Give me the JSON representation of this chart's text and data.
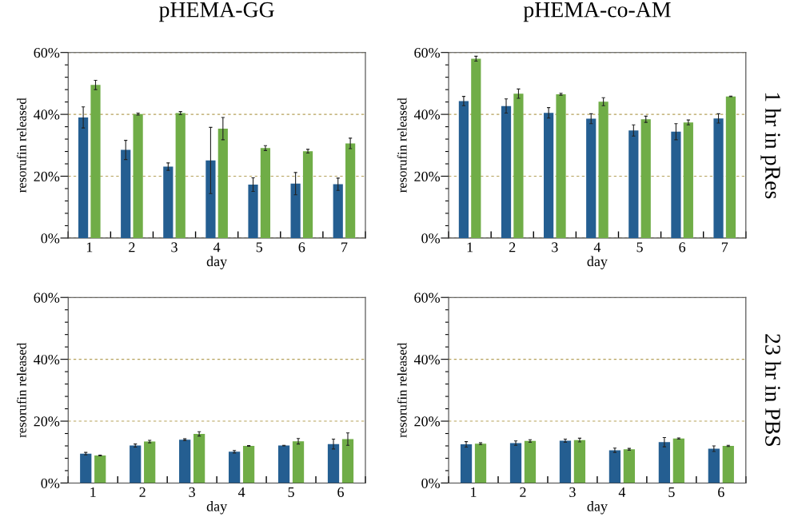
{
  "chart_data": [
    {
      "type": "bar",
      "title": "pHEMA-GG",
      "xlabel": "day",
      "ylabel": "resorufin released",
      "categories": [
        "1",
        "2",
        "3",
        "4",
        "5",
        "6",
        "7"
      ],
      "ylim": [
        0,
        60
      ],
      "yticks": [
        {
          "value": 0,
          "label": "0%"
        },
        {
          "value": 4,
          "label": null
        },
        {
          "value": 8,
          "label": null
        },
        {
          "value": 12,
          "label": null
        },
        {
          "value": 16,
          "label": null
        },
        {
          "value": 20,
          "label": "20%"
        },
        {
          "value": 24,
          "label": null
        },
        {
          "value": 28,
          "label": null
        },
        {
          "value": 32,
          "label": null
        },
        {
          "value": 36,
          "label": null
        },
        {
          "value": 40,
          "label": "40%"
        },
        {
          "value": 44,
          "label": null
        },
        {
          "value": 48,
          "label": null
        },
        {
          "value": 52,
          "label": null
        },
        {
          "value": 56,
          "label": null
        },
        {
          "value": 60,
          "label": "60%"
        }
      ],
      "grid": "y",
      "series": [
        {
          "color": "#245e91",
          "values": [
            39.0,
            28.5,
            23.1,
            25.1,
            17.3,
            17.6,
            17.4
          ],
          "errors": [
            3.4,
            3.1,
            1.2,
            10.7,
            2.2,
            3.6,
            2.0
          ]
        },
        {
          "color": "#70ad47",
          "values": [
            49.5,
            40.1,
            40.4,
            35.4,
            29.1,
            28.1,
            30.6
          ],
          "errors": [
            1.5,
            0.3,
            0.5,
            3.6,
            0.8,
            0.6,
            1.7
          ]
        }
      ]
    },
    {
      "type": "bar",
      "title": "pHEMA-co-AM",
      "xlabel": "day",
      "ylabel": "resorufin released",
      "y2label": "1 hr in pRes",
      "categories": [
        "1",
        "2",
        "3",
        "4",
        "5",
        "6",
        "7"
      ],
      "ylim": [
        0,
        60
      ],
      "yticks": [
        {
          "value": 0,
          "label": "0%"
        },
        {
          "value": 4,
          "label": null
        },
        {
          "value": 8,
          "label": null
        },
        {
          "value": 12,
          "label": null
        },
        {
          "value": 16,
          "label": null
        },
        {
          "value": 20,
          "label": "20%"
        },
        {
          "value": 24,
          "label": null
        },
        {
          "value": 28,
          "label": null
        },
        {
          "value": 32,
          "label": null
        },
        {
          "value": 36,
          "label": null
        },
        {
          "value": 40,
          "label": "40%"
        },
        {
          "value": 44,
          "label": null
        },
        {
          "value": 48,
          "label": null
        },
        {
          "value": 52,
          "label": null
        },
        {
          "value": 56,
          "label": null
        },
        {
          "value": 60,
          "label": "60%"
        }
      ],
      "grid": "y",
      "series": [
        {
          "color": "#245e91",
          "values": [
            44.3,
            42.7,
            40.5,
            38.6,
            34.8,
            34.4,
            38.7
          ],
          "errors": [
            1.5,
            2.3,
            1.7,
            1.6,
            1.8,
            2.6,
            1.5
          ]
        },
        {
          "color": "#70ad47",
          "values": [
            58.0,
            46.7,
            46.5,
            44.1,
            38.4,
            37.4,
            45.8
          ],
          "errors": [
            0.8,
            1.5,
            0.3,
            1.3,
            1.0,
            0.8,
            0.1
          ]
        }
      ]
    },
    {
      "type": "bar",
      "xlabel": "day",
      "ylabel": "resorufin released",
      "categories": [
        "1",
        "2",
        "3",
        "4",
        "5",
        "6"
      ],
      "ylim": [
        0,
        60
      ],
      "yticks": [
        {
          "value": 0,
          "label": "0%"
        },
        {
          "value": 4,
          "label": null
        },
        {
          "value": 8,
          "label": null
        },
        {
          "value": 12,
          "label": null
        },
        {
          "value": 16,
          "label": null
        },
        {
          "value": 20,
          "label": "20%"
        },
        {
          "value": 24,
          "label": null
        },
        {
          "value": 28,
          "label": null
        },
        {
          "value": 32,
          "label": null
        },
        {
          "value": 36,
          "label": null
        },
        {
          "value": 40,
          "label": "40%"
        },
        {
          "value": 44,
          "label": null
        },
        {
          "value": 48,
          "label": null
        },
        {
          "value": 52,
          "label": null
        },
        {
          "value": 56,
          "label": null
        },
        {
          "value": 60,
          "label": "60%"
        }
      ],
      "grid": "y",
      "series": [
        {
          "color": "#245e91",
          "values": [
            9.5,
            12.1,
            14.0,
            10.1,
            12.1,
            12.6
          ],
          "errors": [
            0.4,
            0.5,
            0.3,
            0.4,
            0.1,
            1.6
          ]
        },
        {
          "color": "#70ad47",
          "values": [
            8.9,
            13.4,
            15.9,
            12.0,
            13.5,
            14.2
          ],
          "errors": [
            0.1,
            0.4,
            0.7,
            0.1,
            0.9,
            2.0
          ]
        }
      ]
    },
    {
      "type": "bar",
      "xlabel": "day",
      "ylabel": "resorufin released",
      "y2label": "23 hr in PBS",
      "categories": [
        "1",
        "2",
        "3",
        "4",
        "5",
        "6"
      ],
      "ylim": [
        0,
        60
      ],
      "yticks": [
        {
          "value": 0,
          "label": "0%"
        },
        {
          "value": 4,
          "label": null
        },
        {
          "value": 8,
          "label": null
        },
        {
          "value": 12,
          "label": null
        },
        {
          "value": 16,
          "label": null
        },
        {
          "value": 20,
          "label": "20%"
        },
        {
          "value": 24,
          "label": null
        },
        {
          "value": 28,
          "label": null
        },
        {
          "value": 32,
          "label": null
        },
        {
          "value": 36,
          "label": null
        },
        {
          "value": 40,
          "label": "40%"
        },
        {
          "value": 44,
          "label": null
        },
        {
          "value": 48,
          "label": null
        },
        {
          "value": 52,
          "label": null
        },
        {
          "value": 56,
          "label": null
        },
        {
          "value": 60,
          "label": "60%"
        }
      ],
      "grid": "y",
      "series": [
        {
          "color": "#245e91",
          "values": [
            12.5,
            12.9,
            13.7,
            10.6,
            13.2,
            11.1
          ],
          "errors": [
            0.9,
            0.7,
            0.5,
            0.7,
            1.5,
            0.9
          ]
        },
        {
          "color": "#70ad47",
          "values": [
            12.7,
            13.6,
            13.9,
            10.9,
            14.4,
            12.0
          ],
          "errors": [
            0.3,
            0.4,
            0.6,
            0.3,
            0.2,
            0.2
          ]
        }
      ]
    }
  ]
}
